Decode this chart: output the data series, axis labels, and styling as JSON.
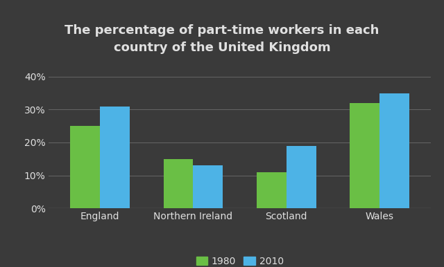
{
  "title": "The percentage of part-time workers in each\ncountry of the United Kingdom",
  "categories": [
    "England",
    "Northern Ireland",
    "Scotland",
    "Wales"
  ],
  "values_1980": [
    25,
    15,
    11,
    32
  ],
  "values_2010": [
    31,
    13,
    19,
    35
  ],
  "color_1980": "#6abf45",
  "color_2010": "#4db3e6",
  "background_color": "#3a3a3a",
  "text_color": "#e0e0e0",
  "grid_color": "#666666",
  "yticks": [
    0,
    10,
    20,
    30,
    40
  ],
  "ylim": [
    0,
    43
  ],
  "legend_labels": [
    "1980",
    "2010"
  ],
  "bar_width": 0.32,
  "title_fontsize": 13,
  "tick_fontsize": 10,
  "legend_fontsize": 10
}
